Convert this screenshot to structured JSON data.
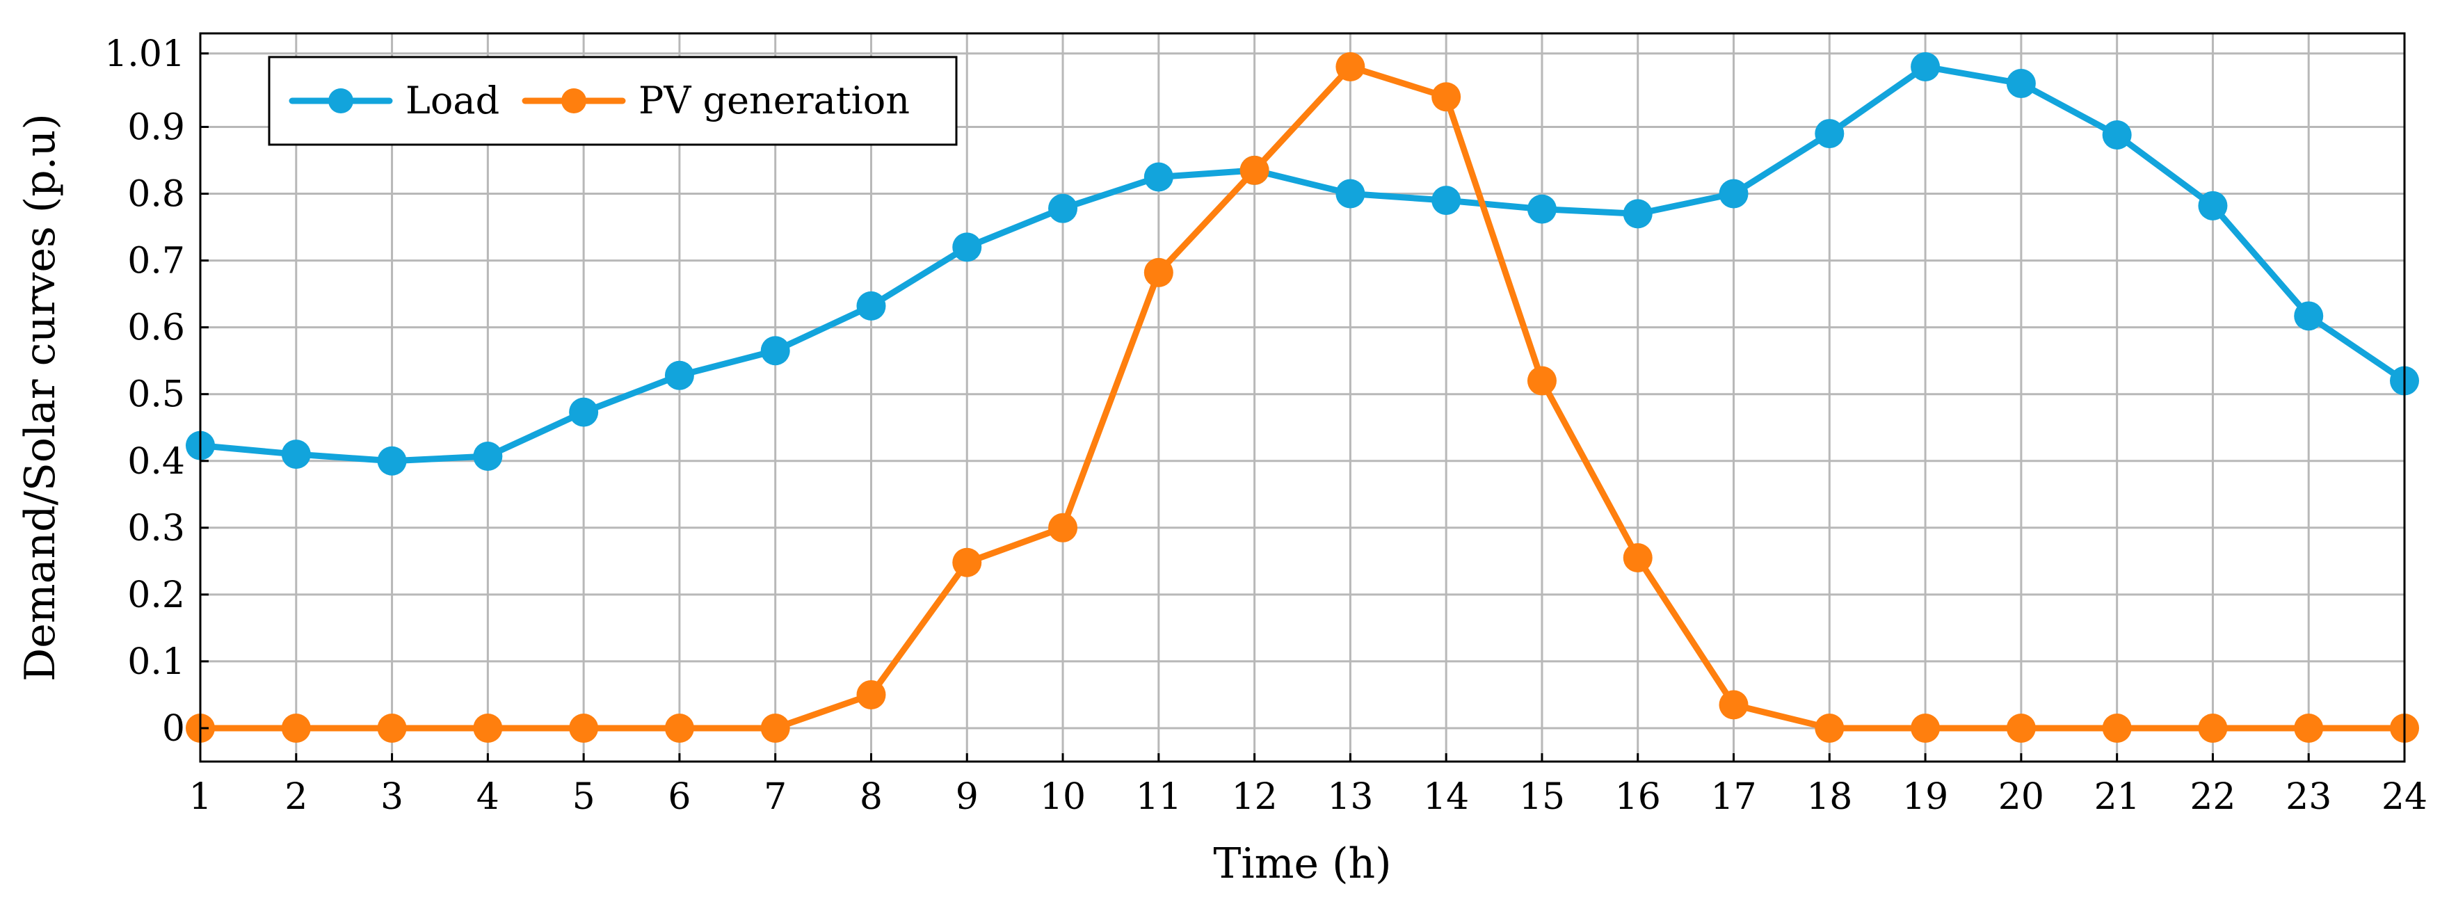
{
  "chart_data": {
    "type": "line",
    "title": "",
    "xlabel": "Time (h)",
    "ylabel": "Demand/Solar curves (p.u)",
    "x": [
      1,
      2,
      3,
      4,
      5,
      6,
      7,
      8,
      9,
      10,
      11,
      12,
      13,
      14,
      15,
      16,
      17,
      18,
      19,
      20,
      21,
      22,
      23,
      24
    ],
    "xlim": [
      1,
      24
    ],
    "ylim": [
      -0.05,
      1.04
    ],
    "yticks": [
      0,
      0.1,
      0.2,
      0.3,
      0.4,
      0.5,
      0.6,
      0.7,
      0.8,
      0.9,
      1.01
    ],
    "ytick_labels": [
      "0",
      "0.1",
      "0.2",
      "0.3",
      "0.4",
      "0.5",
      "0.6",
      "0.7",
      "0.8",
      "0.9",
      "1.01"
    ],
    "xtick_labels": [
      "1",
      "2",
      "3",
      "4",
      "5",
      "6",
      "7",
      "8",
      "9",
      "10",
      "11",
      "12",
      "13",
      "14",
      "15",
      "16",
      "17",
      "18",
      "19",
      "20",
      "21",
      "22",
      "23",
      "24"
    ],
    "grid": true,
    "legend_position": "top-left",
    "series": [
      {
        "name": "Load",
        "color": "#12A4DC",
        "values": [
          0.423,
          0.41,
          0.4,
          0.407,
          0.473,
          0.528,
          0.565,
          0.632,
          0.72,
          0.778,
          0.825,
          0.835,
          0.8,
          0.79,
          0.777,
          0.77,
          0.8,
          0.89,
          0.99,
          0.965,
          0.888,
          0.782,
          0.617,
          0.52
        ]
      },
      {
        "name": "PV generation",
        "color": "#FF7F0E",
        "values": [
          0,
          0,
          0,
          0,
          0,
          0,
          0,
          0.05,
          0.248,
          0.3,
          0.682,
          0.835,
          0.99,
          0.945,
          0.52,
          0.255,
          0.035,
          0,
          0,
          0,
          0,
          0,
          0,
          0
        ]
      }
    ]
  }
}
